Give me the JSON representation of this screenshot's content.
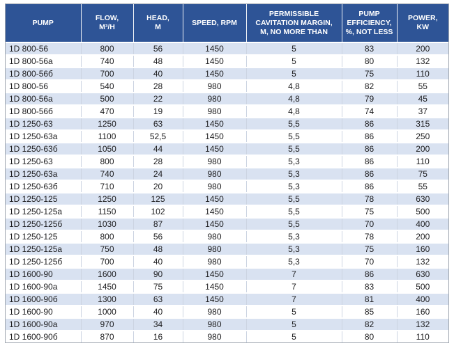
{
  "colors": {
    "header_bg": "#2e5496",
    "header_text": "#ffffff",
    "row_stripe_bg": "#d9e2f1",
    "row_plain_bg": "#ffffff",
    "body_text": "#1c1c1e",
    "grid_line": "#ffffff",
    "outer_border": "#a0a7b0"
  },
  "table": {
    "columns": [
      "PUMP",
      "FLOW,\nM³/H",
      "HEAD,\nM",
      "SPEED, RPM",
      "PERMISSIBLE\nCAVITATION MARGIN,\nM, NO MORE THAN",
      "PUMP\nEFFICIENCY,\n%, NOT LESS",
      "POWER,\nKW"
    ],
    "rows": [
      [
        "1D 800-56",
        "800",
        "56",
        "1450",
        "5",
        "83",
        "200"
      ],
      [
        "1D 800-56a",
        "740",
        "48",
        "1450",
        "5",
        "80",
        "132"
      ],
      [
        "1D 800-56б",
        "700",
        "40",
        "1450",
        "5",
        "75",
        "110"
      ],
      [
        "1D 800-56",
        "540",
        "28",
        "980",
        "4,8",
        "82",
        "55"
      ],
      [
        "1D 800-56a",
        "500",
        "22",
        "980",
        "4,8",
        "79",
        "45"
      ],
      [
        "1D 800-56б",
        "470",
        "19",
        "980",
        "4,8",
        "74",
        "37"
      ],
      [
        "1D 1250-63",
        "1250",
        "63",
        "1450",
        "5,5",
        "86",
        "315"
      ],
      [
        "1D 1250-63a",
        "1100",
        "52,5",
        "1450",
        "5,5",
        "86",
        "250"
      ],
      [
        "1D 1250-63б",
        "1050",
        "44",
        "1450",
        "5,5",
        "86",
        "200"
      ],
      [
        "1D 1250-63",
        "800",
        "28",
        "980",
        "5,3",
        "86",
        "110"
      ],
      [
        "1D 1250-63a",
        "740",
        "24",
        "980",
        "5,3",
        "86",
        "75"
      ],
      [
        "1D 1250-63б",
        "710",
        "20",
        "980",
        "5,3",
        "86",
        "55"
      ],
      [
        "1D 1250-125",
        "1250",
        "125",
        "1450",
        "5,5",
        "78",
        "630"
      ],
      [
        "1D 1250-125a",
        "1150",
        "102",
        "1450",
        "5,5",
        "75",
        "500"
      ],
      [
        "1D 1250-125б",
        "1030",
        "87",
        "1450",
        "5,5",
        "70",
        "400"
      ],
      [
        "1D 1250-125",
        "800",
        "56",
        "980",
        "5,3",
        "78",
        "200"
      ],
      [
        "1D 1250-125a",
        "750",
        "48",
        "980",
        "5,3",
        "75",
        "160"
      ],
      [
        "1D 1250-125б",
        "700",
        "40",
        "980",
        "5,3",
        "70",
        "132"
      ],
      [
        "1D 1600-90",
        "1600",
        "90",
        "1450",
        "7",
        "86",
        "630"
      ],
      [
        "1D 1600-90a",
        "1450",
        "75",
        "1450",
        "7",
        "83",
        "500"
      ],
      [
        "1D 1600-90б",
        "1300",
        "63",
        "1450",
        "7",
        "81",
        "400"
      ],
      [
        "1D 1600-90",
        "1000",
        "40",
        "980",
        "5",
        "85",
        "160"
      ],
      [
        "1D 1600-90a",
        "970",
        "34",
        "980",
        "5",
        "82",
        "132"
      ],
      [
        "1D 1600-90б",
        "870",
        "16",
        "980",
        "5",
        "80",
        "110"
      ]
    ]
  }
}
